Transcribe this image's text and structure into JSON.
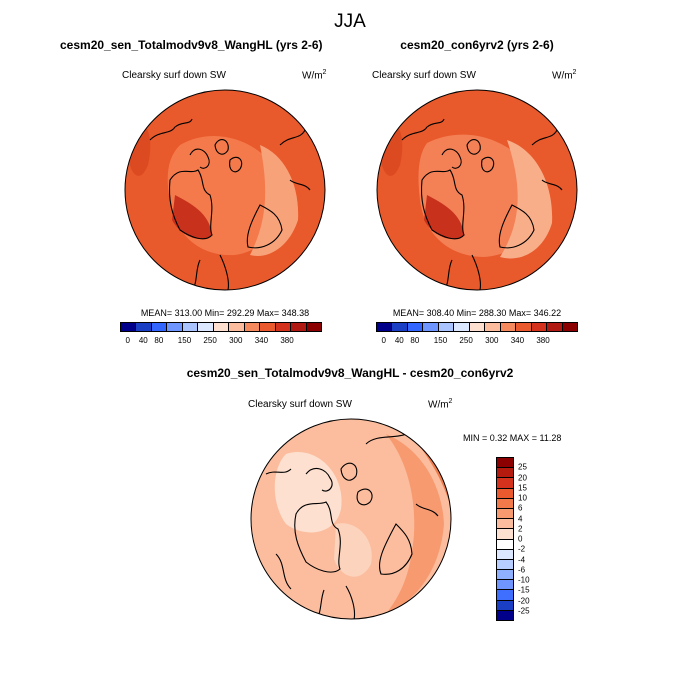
{
  "figure": {
    "title": "JJA"
  },
  "panels": [
    {
      "title": "cesm20_sen_Totalmodv9v8_WangHL (yrs 2-6)",
      "variable": "Clearsky surf down SW",
      "units_base": "W/m",
      "units_exp": "2",
      "stats": "MEAN= 313.00  Min= 292.29  Max= 348.38"
    },
    {
      "title": "cesm20_con6yrv2 (yrs 2-6)",
      "variable": "Clearsky surf down SW",
      "units_base": "W/m",
      "units_exp": "2",
      "stats": "MEAN= 308.40  Min= 288.30  Max= 346.22"
    }
  ],
  "diff": {
    "title": "cesm20_sen_Totalmodv9v8_WangHL - cesm20_con6yrv2",
    "variable": "Clearsky surf down SW",
    "units_base": "W/m",
    "units_exp": "2",
    "minmax": "MIN =  0.32 MAX =  11.28"
  },
  "chart_data": [
    {
      "type": "heatmap",
      "projection": "north polar stereographic",
      "title": "cesm20_sen_Totalmodv9v8_WangHL (yrs 2-6)",
      "variable": "Clearsky surf down SW",
      "units": "W/m^2",
      "mean": 313.0,
      "min": 292.29,
      "max": 348.38,
      "colorbar_levels": [
        "0",
        "40",
        "80",
        "150",
        "250",
        "300",
        "340",
        "380"
      ],
      "colorbar_colors": [
        "#00008b",
        "#1a3fc4",
        "#3366ff",
        "#6f95ff",
        "#a9c4ff",
        "#dce8ff",
        "#fde0cf",
        "#fbbd9e",
        "#f58a5e",
        "#ea5a2e",
        "#d4321d",
        "#b01a12",
        "#8b0000"
      ]
    },
    {
      "type": "heatmap",
      "projection": "north polar stereographic",
      "title": "cesm20_con6yrv2 (yrs 2-6)",
      "variable": "Clearsky surf down SW",
      "units": "W/m^2",
      "mean": 308.4,
      "min": 288.3,
      "max": 346.22,
      "colorbar_levels": [
        "0",
        "40",
        "80",
        "150",
        "250",
        "300",
        "340",
        "380"
      ],
      "colorbar_colors": [
        "#00008b",
        "#1a3fc4",
        "#3366ff",
        "#6f95ff",
        "#a9c4ff",
        "#dce8ff",
        "#fde0cf",
        "#fbbd9e",
        "#f58a5e",
        "#ea5a2e",
        "#d4321d",
        "#b01a12",
        "#8b0000"
      ]
    },
    {
      "type": "heatmap",
      "projection": "north polar stereographic",
      "title": "cesm20_sen_Totalmodv9v8_WangHL - cesm20_con6yrv2",
      "variable": "Clearsky surf down SW",
      "units": "W/m^2",
      "min": 0.32,
      "max": 11.28,
      "colorbar_levels": [
        "25",
        "20",
        "15",
        "10",
        "6",
        "4",
        "2",
        "0",
        "-2",
        "-4",
        "-6",
        "-10",
        "-15",
        "-20",
        "-25"
      ],
      "colorbar_colors": [
        "#8b0000",
        "#b51a0f",
        "#d4321d",
        "#ea5a2e",
        "#f2794a",
        "#f79a70",
        "#fbbd9e",
        "#fde0cf",
        "#ffffff",
        "#dce8ff",
        "#b7ceff",
        "#8fafff",
        "#6f95ff",
        "#3f6fff",
        "#1a3fc4",
        "#00008b"
      ]
    }
  ]
}
